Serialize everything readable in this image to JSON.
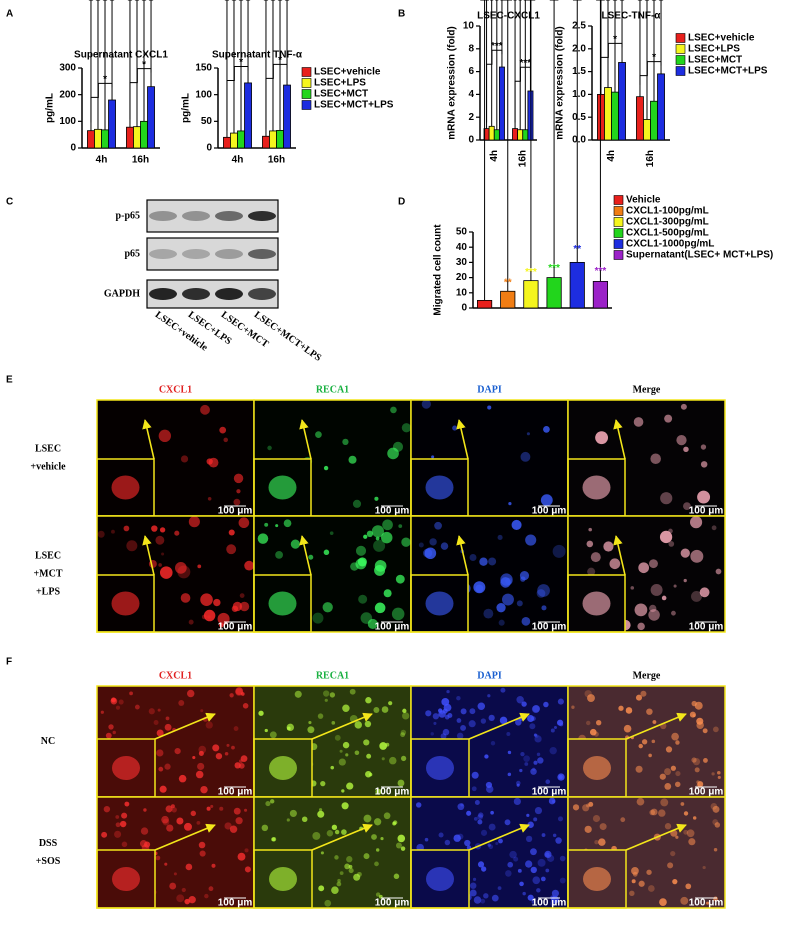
{
  "panel_labels": [
    "A",
    "B",
    "C",
    "D",
    "E",
    "F"
  ],
  "chart_data": [
    {
      "type": "bar",
      "title": "Supernatant CXCL1",
      "ylabel": "pg/mL",
      "categories": [
        "4h",
        "16h"
      ],
      "series": [
        {
          "color": "#e8201c",
          "values": [
            65,
            78
          ],
          "errors": [
            12,
            10
          ]
        },
        {
          "color": "#f5f51e",
          "values": [
            70,
            80
          ],
          "errors": [
            10,
            12
          ]
        },
        {
          "color": "#22d51c",
          "values": [
            68,
            100
          ],
          "errors": [
            10,
            12
          ]
        },
        {
          "color": "#1d2de0",
          "values": [
            180,
            230
          ],
          "errors": [
            25,
            30
          ]
        }
      ],
      "ylim": [
        0,
        300
      ],
      "yticks": [
        0,
        100,
        200,
        300
      ],
      "annotations": [
        "*",
        "*"
      ]
    },
    {
      "type": "bar",
      "title": "Supernatant TNF-α",
      "ylabel": "pg/mL",
      "categories": [
        "4h",
        "16h"
      ],
      "series": [
        {
          "name": "LSEC+vehicle",
          "color": "#e8201c",
          "values": [
            20,
            22
          ],
          "errors": [
            3,
            3
          ]
        },
        {
          "name": "LSEC+LPS",
          "color": "#f5f51e",
          "values": [
            28,
            32
          ],
          "errors": [
            5,
            5
          ]
        },
        {
          "name": "LSEC+MCT",
          "color": "#22d51c",
          "values": [
            32,
            33
          ],
          "errors": [
            6,
            6
          ]
        },
        {
          "name": "LSEC+MCT+LPS",
          "color": "#1d2de0",
          "values": [
            122,
            118
          ],
          "errors": [
            12,
            20
          ]
        }
      ],
      "ylim": [
        0,
        150
      ],
      "yticks": [
        0,
        50,
        100,
        150
      ],
      "annotations": [
        "*",
        "*"
      ],
      "legend": "right"
    },
    {
      "type": "bar",
      "title": "LSEC-CXCL1",
      "ylabel": "mRNA expression (fold)",
      "categories": [
        "4h",
        "16h"
      ],
      "series": [
        {
          "color": "#e8201c",
          "values": [
            1.0,
            1.0
          ],
          "errors": [
            0.1,
            0.1
          ]
        },
        {
          "color": "#f5f51e",
          "values": [
            1.2,
            0.9
          ],
          "errors": [
            0.15,
            0.1
          ]
        },
        {
          "color": "#22d51c",
          "values": [
            0.9,
            0.9
          ],
          "errors": [
            0.1,
            0.1
          ]
        },
        {
          "color": "#1d2de0",
          "values": [
            6.4,
            4.3
          ],
          "errors": [
            0.6,
            1.2
          ]
        }
      ],
      "ylim": [
        0,
        10
      ],
      "yticks": [
        0,
        2,
        4,
        6,
        8,
        10
      ],
      "annotations": [
        "***",
        "***"
      ],
      "xrotate": true
    },
    {
      "type": "bar",
      "title": "LSEC-TNF-α",
      "ylabel": "mRNA expression (fold)",
      "categories": [
        "4h",
        "16h"
      ],
      "series": [
        {
          "name": "LSEC+vehicle",
          "color": "#e8201c",
          "values": [
            1.0,
            0.95
          ],
          "errors": [
            0.2,
            0.15
          ]
        },
        {
          "name": "LSEC+LPS",
          "color": "#f5f51e",
          "values": [
            1.15,
            0.45
          ],
          "errors": [
            0.3,
            0.08
          ]
        },
        {
          "name": "LSEC+MCT",
          "color": "#22d51c",
          "values": [
            1.05,
            0.85
          ],
          "errors": [
            0.35,
            0.15
          ]
        },
        {
          "name": "LSEC+MCT+LPS",
          "color": "#1d2de0",
          "values": [
            1.7,
            1.45
          ],
          "errors": [
            0.2,
            0.05
          ]
        }
      ],
      "ylim": [
        0,
        2.5
      ],
      "yticks": [
        {
          "value": 0,
          "label": "0.0"
        },
        0.5,
        {
          "value": 1,
          "label": "1.0"
        },
        1.5,
        {
          "value": 2,
          "label": "2.0"
        },
        2.5
      ],
      "annotations": [
        "*",
        "*"
      ],
      "legend": "right",
      "xrotate": true
    },
    {
      "type": "bar",
      "ylabel": "Migrated cell count",
      "categories": [
        "Vehicle",
        "CXCL1-100pg/mL",
        "CXCL1-300pg/mL",
        "CXCL1-500pg/mL",
        "CXCL1-1000pg/mL",
        "Supernatant(LSEC+ MCT+LPS)"
      ],
      "values": [
        5,
        11,
        18,
        20,
        30,
        17.5
      ],
      "errors": [
        0.8,
        1.5,
        1.5,
        2,
        4.5,
        2.5
      ],
      "colors": [
        "#e8201c",
        "#f07d14",
        "#f5f51e",
        "#22d51c",
        "#1d2de0",
        "#9b22c8"
      ],
      "significance": [
        null,
        "**",
        "***",
        "***",
        "**",
        "***"
      ],
      "ylim": [
        0,
        50
      ],
      "yticks": [
        0,
        10,
        20,
        30,
        40,
        50
      ],
      "legend": "right"
    }
  ],
  "blot": {
    "rows": [
      "p-p65",
      "p65",
      "GAPDH"
    ],
    "lanes": [
      "LSEC+vehicle",
      "LSEC+LPS",
      "LSEC+MCT",
      "LSEC+MCT+LPS"
    ]
  },
  "figure_e": {
    "columns": [
      "CXCL1",
      "RECA1",
      "DAPI",
      "Merge"
    ],
    "column_colors": [
      "#e02020",
      "#18b040",
      "#1a5fd0",
      "#000000"
    ],
    "rows": [
      [
        "LSEC",
        "+vehicle"
      ],
      [
        "LSEC",
        "+MCT",
        "+LPS"
      ]
    ],
    "scale_bar": "100 μm"
  },
  "figure_f": {
    "columns": [
      "CXCL1",
      "RECA1",
      "DAPI",
      "Merge"
    ],
    "column_colors": [
      "#e02020",
      "#18b040",
      "#1a5fd0",
      "#000000"
    ],
    "rows": [
      [
        "NC"
      ],
      [
        "DSS",
        "+SOS"
      ]
    ],
    "scale_bar": "100 μm"
  }
}
